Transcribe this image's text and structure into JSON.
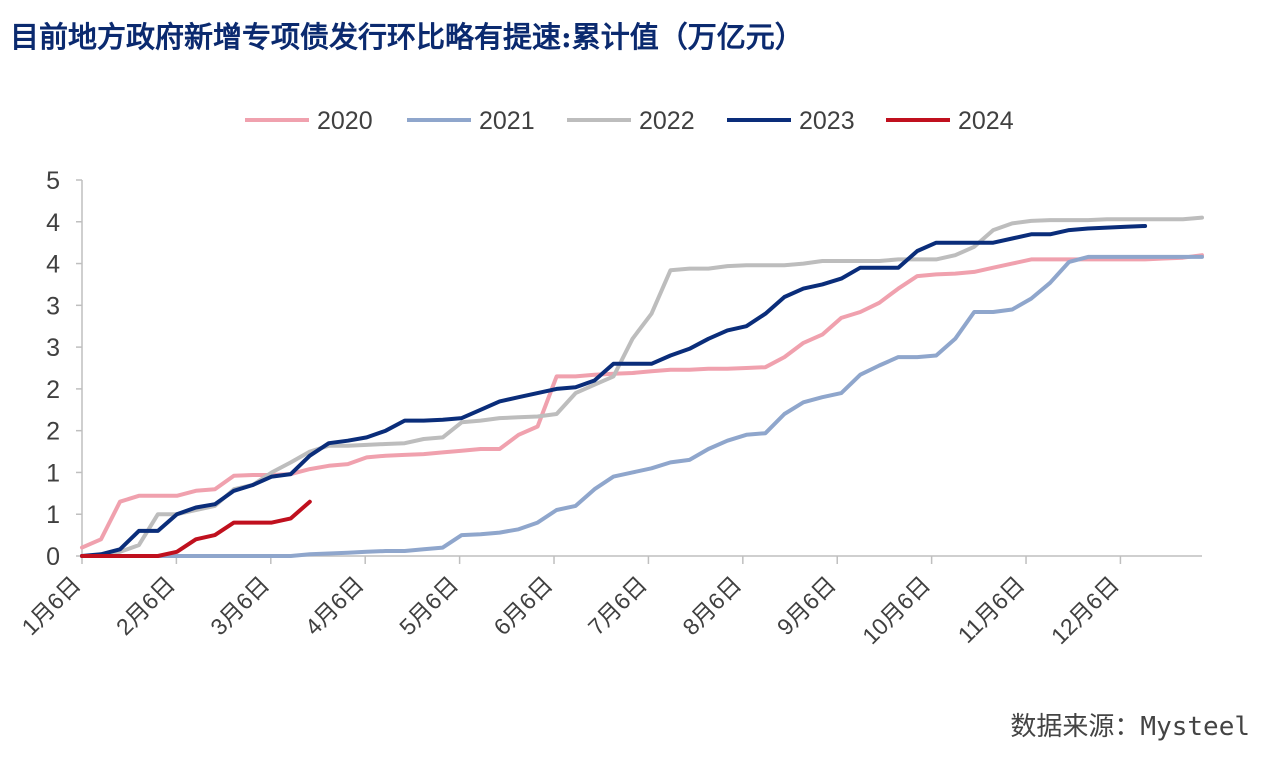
{
  "title": "目前地方政府新增专项债发行环比略有提速:累计值（万亿元）",
  "source": "数据来源：Mysteel",
  "chart_data": {
    "type": "line",
    "title": "目前地方政府新增专项债发行环比略有提速:累计值（万亿元）",
    "ylabel": "",
    "xlabel": "",
    "x_tick_labels": [
      "1月6日",
      "2月6日",
      "3月6日",
      "4月6日",
      "5月6日",
      "6月6日",
      "7月6日",
      "8月6日",
      "9月6日",
      "10月6日",
      "11月6日",
      "12月6日"
    ],
    "y_tick_labels": [
      "0",
      "1",
      "1",
      "2",
      "2",
      "3",
      "3",
      "4",
      "4",
      "5"
    ],
    "ylim": [
      0,
      4.5
    ],
    "xlim": [
      0,
      59
    ],
    "grid": false,
    "legend": "top",
    "series": [
      {
        "name": "2020",
        "color": "#f0a1ae",
        "values": [
          0.1,
          0.2,
          0.65,
          0.72,
          0.72,
          0.72,
          0.78,
          0.8,
          0.96,
          0.97,
          0.97,
          0.98,
          1.04,
          1.08,
          1.1,
          1.18,
          1.2,
          1.21,
          1.22,
          1.24,
          1.26,
          1.28,
          1.28,
          1.45,
          1.55,
          2.15,
          2.15,
          2.17,
          2.18,
          2.19,
          2.21,
          2.23,
          2.23,
          2.24,
          2.24,
          2.25,
          2.26,
          2.38,
          2.55,
          2.65,
          2.85,
          2.92,
          3.03,
          3.2,
          3.35,
          3.37,
          3.38,
          3.4,
          3.45,
          3.5,
          3.55,
          3.55,
          3.55,
          3.55,
          3.55,
          3.55,
          3.55,
          3.56,
          3.57,
          3.6
        ]
      },
      {
        "name": "2021",
        "color": "#8fa6cc",
        "values": [
          0,
          0,
          0,
          0,
          0,
          0,
          0,
          0,
          0,
          0,
          0,
          0,
          0.02,
          0.03,
          0.04,
          0.05,
          0.06,
          0.06,
          0.08,
          0.1,
          0.25,
          0.26,
          0.28,
          0.32,
          0.4,
          0.55,
          0.6,
          0.8,
          0.95,
          1.0,
          1.05,
          1.12,
          1.15,
          1.28,
          1.38,
          1.45,
          1.47,
          1.7,
          1.84,
          1.9,
          1.95,
          2.17,
          2.28,
          2.38,
          2.38,
          2.4,
          2.6,
          2.92,
          2.92,
          2.95,
          3.08,
          3.27,
          3.52,
          3.58,
          3.58,
          3.58,
          3.58,
          3.58,
          3.58,
          3.58
        ]
      },
      {
        "name": "2022",
        "color": "#bdbdbd",
        "values": [
          0,
          0,
          0.05,
          0.13,
          0.5,
          0.5,
          0.55,
          0.6,
          0.8,
          0.85,
          1.0,
          1.12,
          1.25,
          1.32,
          1.32,
          1.33,
          1.34,
          1.35,
          1.4,
          1.42,
          1.6,
          1.62,
          1.65,
          1.66,
          1.67,
          1.7,
          1.95,
          2.05,
          2.15,
          2.6,
          2.9,
          3.42,
          3.44,
          3.44,
          3.47,
          3.48,
          3.48,
          3.48,
          3.5,
          3.53,
          3.53,
          3.53,
          3.53,
          3.55,
          3.55,
          3.55,
          3.6,
          3.7,
          3.9,
          3.98,
          4.01,
          4.02,
          4.02,
          4.02,
          4.03,
          4.03,
          4.03,
          4.03,
          4.03,
          4.05
        ]
      },
      {
        "name": "2023",
        "color": "#0a2d7a",
        "values": [
          0,
          0.02,
          0.08,
          0.3,
          0.3,
          0.5,
          0.58,
          0.62,
          0.78,
          0.85,
          0.95,
          0.98,
          1.2,
          1.35,
          1.38,
          1.42,
          1.5,
          1.62,
          1.62,
          1.63,
          1.65,
          1.75,
          1.85,
          1.9,
          1.95,
          2.0,
          2.02,
          2.1,
          2.3,
          2.3,
          2.3,
          2.4,
          2.48,
          2.6,
          2.7,
          2.75,
          2.9,
          3.1,
          3.2,
          3.25,
          3.32,
          3.45,
          3.45,
          3.45,
          3.65,
          3.75,
          3.75,
          3.75,
          3.75,
          3.8,
          3.85,
          3.85,
          3.9,
          3.92,
          3.93,
          3.94,
          3.95
        ]
      },
      {
        "name": "2024",
        "color": "#c0101e",
        "values": [
          0,
          0,
          0,
          0,
          0,
          0.05,
          0.2,
          0.25,
          0.4,
          0.4,
          0.4,
          0.45,
          0.65
        ]
      }
    ]
  }
}
